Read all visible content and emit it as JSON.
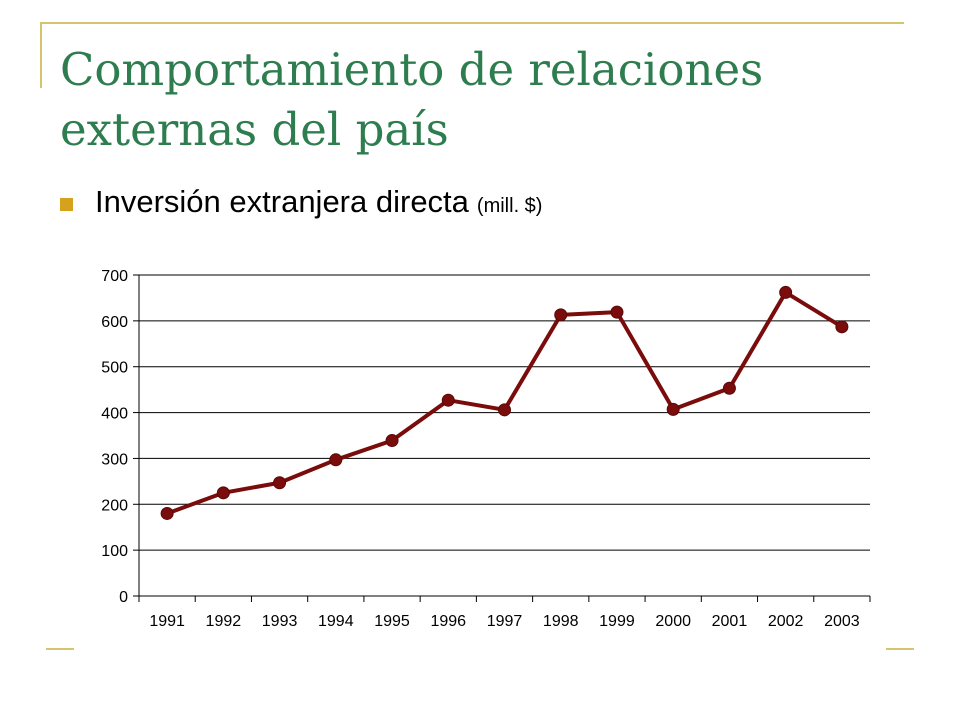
{
  "slide": {
    "title": "Comportamiento de relaciones externas del país",
    "bullet_main": "Inversión extranjera directa",
    "bullet_unit": "(mill. $)"
  },
  "colors": {
    "title": "#2e7d4f",
    "accent": "#d4a21c",
    "frame": "#d6c36b",
    "series": "#7a0c0c"
  },
  "chart_data": {
    "type": "line",
    "title": "",
    "xlabel": "",
    "ylabel": "",
    "categories": [
      "1991",
      "1992",
      "1993",
      "1994",
      "1995",
      "1996",
      "1997",
      "1998",
      "1999",
      "2000",
      "2001",
      "2002",
      "2003"
    ],
    "series": [
      {
        "values": [
          180,
          225,
          247,
          297,
          339,
          427,
          406,
          613,
          619,
          407,
          453,
          662,
          587
        ]
      }
    ],
    "ylim": [
      0,
      700
    ],
    "yticks": [
      0,
      100,
      200,
      300,
      400,
      500,
      600,
      700
    ],
    "grid": true,
    "legend": "none"
  }
}
